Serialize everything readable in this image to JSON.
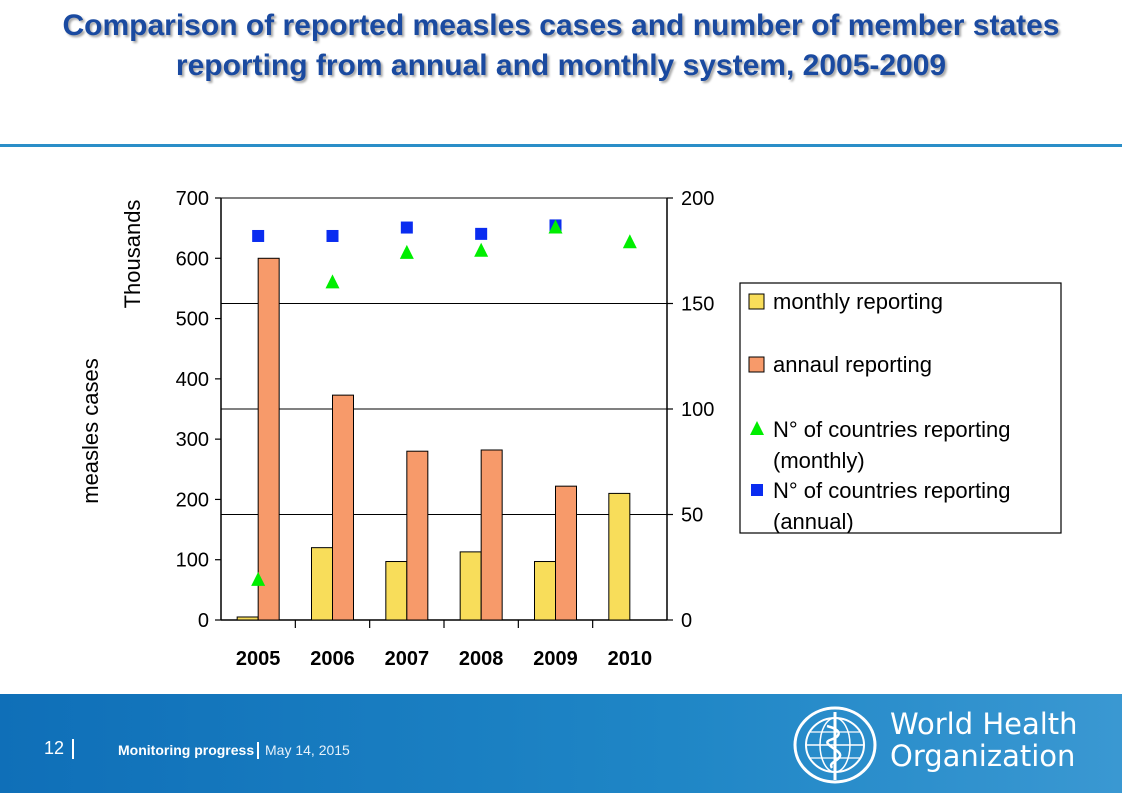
{
  "slide": {
    "title": "Comparison of reported measles cases and number of member states reporting from annual and monthly system, 2005-2009"
  },
  "footer": {
    "page_number": "12",
    "section": "Monitoring progress",
    "date": "May 14, 2015",
    "org_name_line1": "World Health",
    "org_name_line2": "Organization"
  },
  "colors": {
    "title": "#1a4aa0",
    "footer_bg": "#1f86c6",
    "monthly_bar": "#f8dd5a",
    "annual_bar": "#f79a6a",
    "monthly_marker": "#00ee00",
    "annual_marker": "#0a2cf0"
  },
  "chart_data": {
    "type": "bar",
    "categories": [
      "2005",
      "2006",
      "2007",
      "2008",
      "2009",
      "2010"
    ],
    "ylabel": "measles cases",
    "y_units_label": "Thousands",
    "ylim": [
      0,
      700
    ],
    "yticks": [
      "0",
      "100",
      "200",
      "300",
      "400",
      "500",
      "600",
      "700"
    ],
    "y2lim": [
      0,
      200
    ],
    "y2ticks": [
      "0",
      "50",
      "100",
      "150",
      "200"
    ],
    "grid": true,
    "legend_position": "right",
    "series": [
      {
        "name": "monthly reporting",
        "type": "bar",
        "axis": "left",
        "values": [
          5,
          120,
          97,
          113,
          97,
          210
        ]
      },
      {
        "name": "annaul reporting",
        "type": "bar",
        "axis": "left",
        "values": [
          600,
          373,
          280,
          282,
          222,
          null
        ]
      },
      {
        "name": "N° of countries reporting (monthly)",
        "type": "scatter",
        "marker": "triangle",
        "axis": "right",
        "values": [
          19,
          160,
          174,
          175,
          186,
          179
        ]
      },
      {
        "name": "N° of countries reporting (annual)",
        "type": "scatter",
        "marker": "square",
        "axis": "right",
        "values": [
          182,
          182,
          186,
          183,
          187,
          null
        ]
      }
    ],
    "legend_lines": [
      [
        "monthly reporting"
      ],
      [
        "annaul reporting"
      ],
      [
        "N° of countries reporting",
        "(monthly)"
      ],
      [
        "N° of countries reporting",
        "(annual)"
      ]
    ]
  }
}
